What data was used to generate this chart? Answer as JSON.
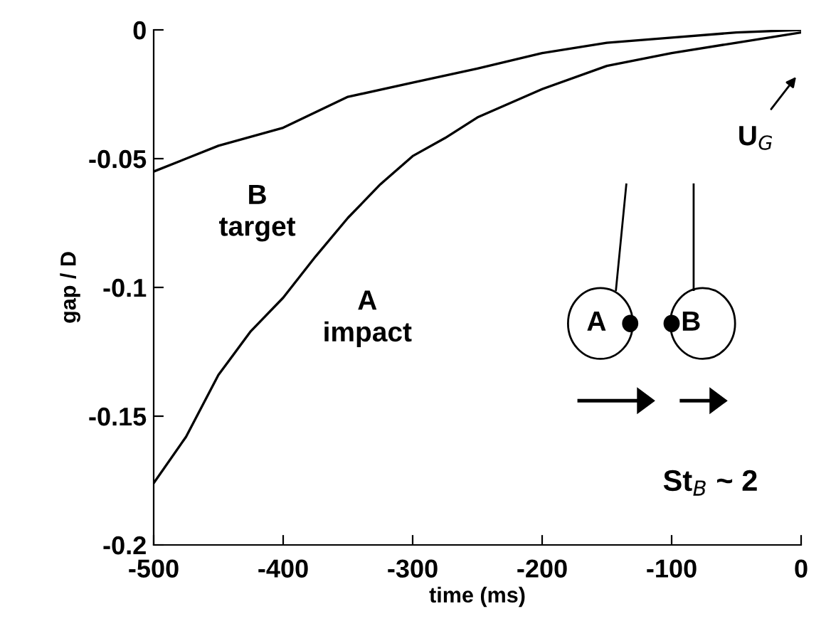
{
  "chart_data": {
    "type": "line",
    "xlabel": "time (ms)",
    "ylabel": "gap / D",
    "xlim": [
      -500,
      0
    ],
    "ylim": [
      -0.2,
      0
    ],
    "xticks": [
      -500,
      -400,
      -300,
      -200,
      -100,
      0
    ],
    "yticks": [
      -0.2,
      -0.15,
      -0.1,
      -0.05,
      0
    ],
    "grid": false,
    "marker": "none",
    "line_style": "solid",
    "series": [
      {
        "color": "#000000",
        "x": [
          -500,
          -475,
          -450,
          -425,
          -400,
          -375,
          -350,
          -325,
          -300,
          -275,
          -250,
          -200,
          -150,
          -100,
          -50,
          0
        ],
        "values": [
          -0.176,
          -0.158,
          -0.134,
          -0.117,
          -0.104,
          -0.088,
          -0.073,
          -0.06,
          -0.049,
          -0.042,
          -0.034,
          -0.023,
          -0.014,
          -0.009,
          -0.005,
          -0.001
        ]
      },
      {
        "color": "#000000",
        "x": [
          -500,
          -475,
          -450,
          -400,
          -350,
          -300,
          -250,
          -200,
          -150,
          -100,
          -50,
          0
        ],
        "values": [
          -0.055,
          -0.05,
          -0.045,
          -0.038,
          -0.026,
          -0.0205,
          -0.015,
          -0.009,
          -0.005,
          -0.003,
          -0.001,
          0
        ]
      }
    ],
    "annotations": [
      "B\ntarget",
      "A\nimpact",
      "U$_{G}$",
      "St$_{B}$ ~ 2",
      "A",
      "B"
    ]
  }
}
